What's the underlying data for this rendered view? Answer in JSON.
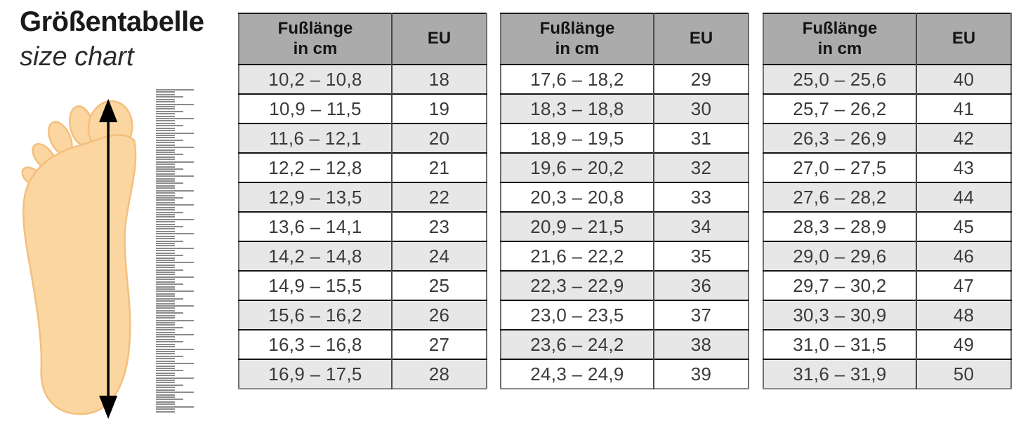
{
  "page": {
    "title": "Größentabelle",
    "subtitle": "size chart"
  },
  "illustration": {
    "name": "foot-length-measurement",
    "foot_fill": "#fbd6a0",
    "foot_outline": "#f4bf7e",
    "arrow_color": "#000000",
    "ruler_tick_color": "#8c8c8c"
  },
  "colors": {
    "table_header_bg": "#ababab",
    "row_alt_bg": "#e7e7e7",
    "row_bg": "#ffffff",
    "grid_line_dark": "#141414",
    "grid_line_gray": "#6e6e6e"
  },
  "table_header": {
    "cm_line1": "Fußlänge",
    "cm_line2": "in cm",
    "eu": "EU"
  },
  "tables": [
    {
      "rows": [
        {
          "cm": "10,2 – 10,8",
          "eu": "18"
        },
        {
          "cm": "10,9 – 11,5",
          "eu": "19"
        },
        {
          "cm": "11,6 – 12,1",
          "eu": "20"
        },
        {
          "cm": "12,2 – 12,8",
          "eu": "21"
        },
        {
          "cm": "12,9 – 13,5",
          "eu": "22"
        },
        {
          "cm": "13,6 – 14,1",
          "eu": "23"
        },
        {
          "cm": "14,2 – 14,8",
          "eu": "24"
        },
        {
          "cm": "14,9 – 15,5",
          "eu": "25"
        },
        {
          "cm": "15,6 – 16,2",
          "eu": "26"
        },
        {
          "cm": "16,3 – 16,8",
          "eu": "27"
        },
        {
          "cm": "16,9 – 17,5",
          "eu": "28"
        }
      ]
    },
    {
      "rows": [
        {
          "cm": "17,6 – 18,2",
          "eu": "29"
        },
        {
          "cm": "18,3 – 18,8",
          "eu": "30"
        },
        {
          "cm": "18,9 – 19,5",
          "eu": "31"
        },
        {
          "cm": "19,6 – 20,2",
          "eu": "32"
        },
        {
          "cm": "20,3 – 20,8",
          "eu": "33"
        },
        {
          "cm": "20,9 – 21,5",
          "eu": "34"
        },
        {
          "cm": "21,6 – 22,2",
          "eu": "35"
        },
        {
          "cm": "22,3 – 22,9",
          "eu": "36"
        },
        {
          "cm": "23,0 – 23,5",
          "eu": "37"
        },
        {
          "cm": "23,6 – 24,2",
          "eu": "38"
        },
        {
          "cm": "24,3 – 24,9",
          "eu": "39"
        }
      ]
    },
    {
      "rows": [
        {
          "cm": "25,0 – 25,6",
          "eu": "40"
        },
        {
          "cm": "25,7 – 26,2",
          "eu": "41"
        },
        {
          "cm": "26,3 – 26,9",
          "eu": "42"
        },
        {
          "cm": "27,0 – 27,5",
          "eu": "43"
        },
        {
          "cm": "27,6 – 28,2",
          "eu": "44"
        },
        {
          "cm": "28,3 – 28,9",
          "eu": "45"
        },
        {
          "cm": "29,0 – 29,6",
          "eu": "46"
        },
        {
          "cm": "29,7 – 30,2",
          "eu": "47"
        },
        {
          "cm": "30,3 – 30,9",
          "eu": "48"
        },
        {
          "cm": "31,0 – 31,5",
          "eu": "49"
        },
        {
          "cm": "31,6 – 31,9",
          "eu": "50"
        }
      ]
    }
  ]
}
